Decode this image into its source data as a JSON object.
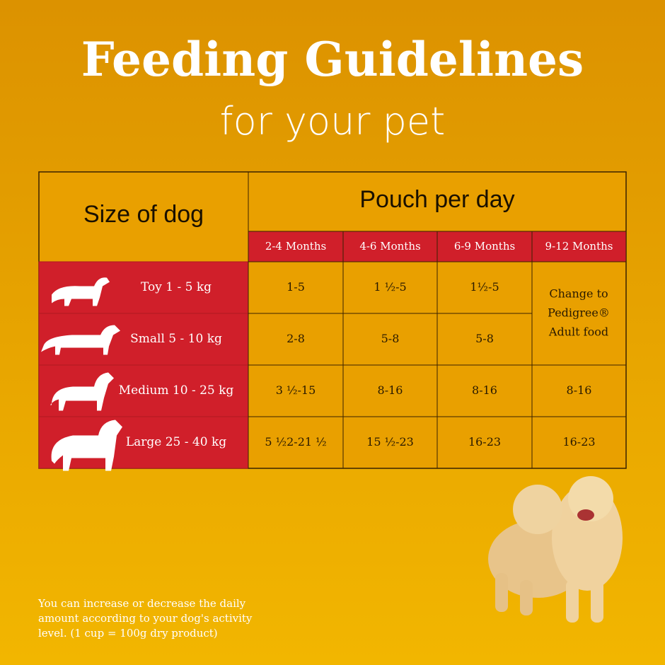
{
  "header": {
    "title": "Feeding Guidelines",
    "subtitle": "for your pet"
  },
  "table": {
    "row_header": "Size of dog",
    "group_header": "Pouch per day",
    "columns": [
      "2-4 Months",
      "4-6 Months",
      "6-9 Months",
      "9-12 Months"
    ],
    "rows": [
      {
        "label": "Toy 1 - 5 kg",
        "cells": [
          "1-5",
          "1 ½-5",
          "1½-5"
        ]
      },
      {
        "label": "Small 5 - 10 kg",
        "cells": [
          "2-8",
          "5-8",
          "5-8"
        ]
      },
      {
        "label": "Medium 10 - 25 kg",
        "cells": [
          "3 ½-15",
          "8-16",
          "8-16",
          "8-16"
        ]
      },
      {
        "label": "Large 25 - 40 kg",
        "cells": [
          "5 ½2-21 ½",
          "15 ½-23",
          "16-23",
          "16-23"
        ]
      }
    ],
    "merged_note_lines": [
      "Change to",
      "Pedigree®",
      "Adult food"
    ]
  },
  "footnote_lines": [
    "You can increase or decrease the daily",
    "amount according to your dog's activity",
    "level. (1 cup = 100g dry product)"
  ]
}
